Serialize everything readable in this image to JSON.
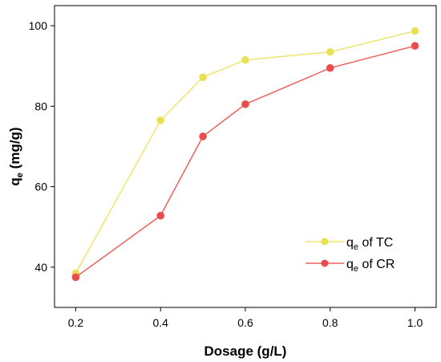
{
  "chart_data": {
    "type": "line",
    "xlabel": "Dosage (g/L)",
    "ylabel": {
      "main": "q",
      "sub": "e",
      "unit": " (mg/g)"
    },
    "xlim": [
      0.15,
      1.05
    ],
    "ylim": [
      30,
      105
    ],
    "x_ticks": [
      0.2,
      0.4,
      0.6,
      0.8,
      1.0
    ],
    "x_tick_labels": [
      "0.2",
      "0.4",
      "0.6",
      "0.8",
      "1.0"
    ],
    "y_ticks": [
      40,
      60,
      80,
      100
    ],
    "y_tick_labels": [
      "40",
      "60",
      "80",
      "100"
    ],
    "x": [
      0.2,
      0.4,
      0.5,
      0.6,
      0.8,
      1.0
    ],
    "grid": false,
    "legend_position": "lower-right",
    "series": [
      {
        "name": {
          "main": "q",
          "sub": "e",
          "rest": " of TC"
        },
        "color": "#f0e470",
        "marker_fill": "#e8e050",
        "values": [
          38.5,
          76.5,
          87.2,
          91.5,
          93.5,
          98.7
        ]
      },
      {
        "name": {
          "main": "q",
          "sub": "e",
          "rest": " of CR"
        },
        "color": "#f06060",
        "marker_fill": "#e84c4c",
        "values": [
          37.5,
          52.8,
          72.5,
          80.5,
          89.5,
          95.0
        ]
      }
    ]
  }
}
